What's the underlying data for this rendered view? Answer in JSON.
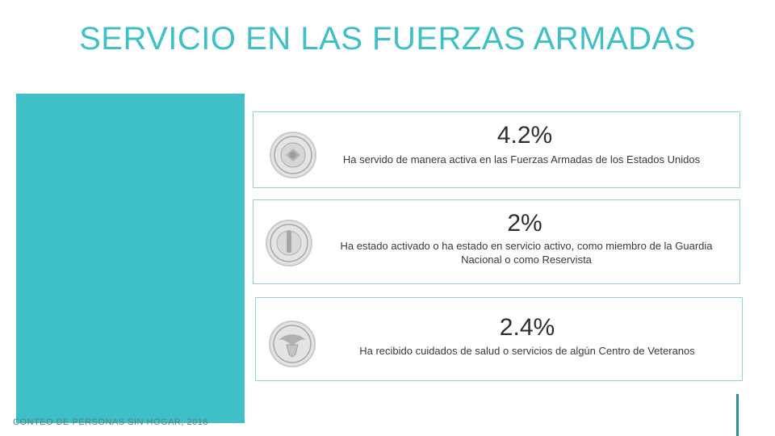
{
  "title": "SERVICIO EN LAS FUERZAS ARMADAS",
  "footer": "CONTEO DE PERSONAS SIN HOGAR, 2018",
  "cards": [
    {
      "stat": "4.2%",
      "description": "Ha servido de manera activa en las Fuerzas Armadas de los Estados Unidos",
      "icon": "armed-forces-seal"
    },
    {
      "stat": "2%",
      "description": "Ha estado activado o ha estado en servicio activo, como miembro de la Guardia Nacional o como Reservista",
      "icon": "national-guard-seal"
    },
    {
      "stat": "2.4%",
      "description": "Ha recibido cuidados de salud o servicios de algún Centro de Veteranos",
      "icon": "veterans-affairs-seal"
    }
  ],
  "colors": {
    "accent": "#3fbfc6",
    "card_border": "#8fd3d7",
    "line": "#2a8f96"
  }
}
